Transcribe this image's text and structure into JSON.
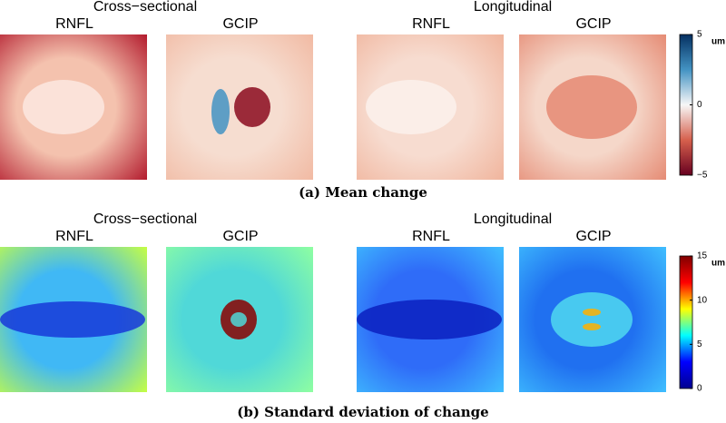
{
  "panels": [
    {
      "caption": "(a) Mean change",
      "groups": [
        {
          "title": "Cross−sectional",
          "maps": [
            "RNFL",
            "GCIP"
          ]
        },
        {
          "title": "Longitudinal",
          "maps": [
            "RNFL",
            "GCIP"
          ]
        }
      ],
      "colorbar": {
        "unit": "um",
        "lim": [
          -5,
          5
        ],
        "ticks": [
          {
            "value": -5,
            "label": "−5"
          },
          0,
          5
        ],
        "colors": [
          "#67001f",
          "#d6604d",
          "#f7f7f7",
          "#4393c3",
          "#053061"
        ]
      }
    },
    {
      "caption": "(b) Standard deviation of change",
      "groups": [
        {
          "title": "Cross−sectional",
          "maps": [
            "RNFL",
            "GCIP"
          ]
        },
        {
          "title": "Longitudinal",
          "maps": [
            "RNFL",
            "GCIP"
          ]
        }
      ],
      "colorbar": {
        "unit": "um",
        "lim": [
          0,
          15
        ],
        "ticks": [
          0,
          5,
          10,
          15
        ],
        "colors": [
          "#00008f",
          "#0000ff",
          "#00ffff",
          "#ffff00",
          "#ff0000",
          "#800000"
        ]
      }
    }
  ]
}
